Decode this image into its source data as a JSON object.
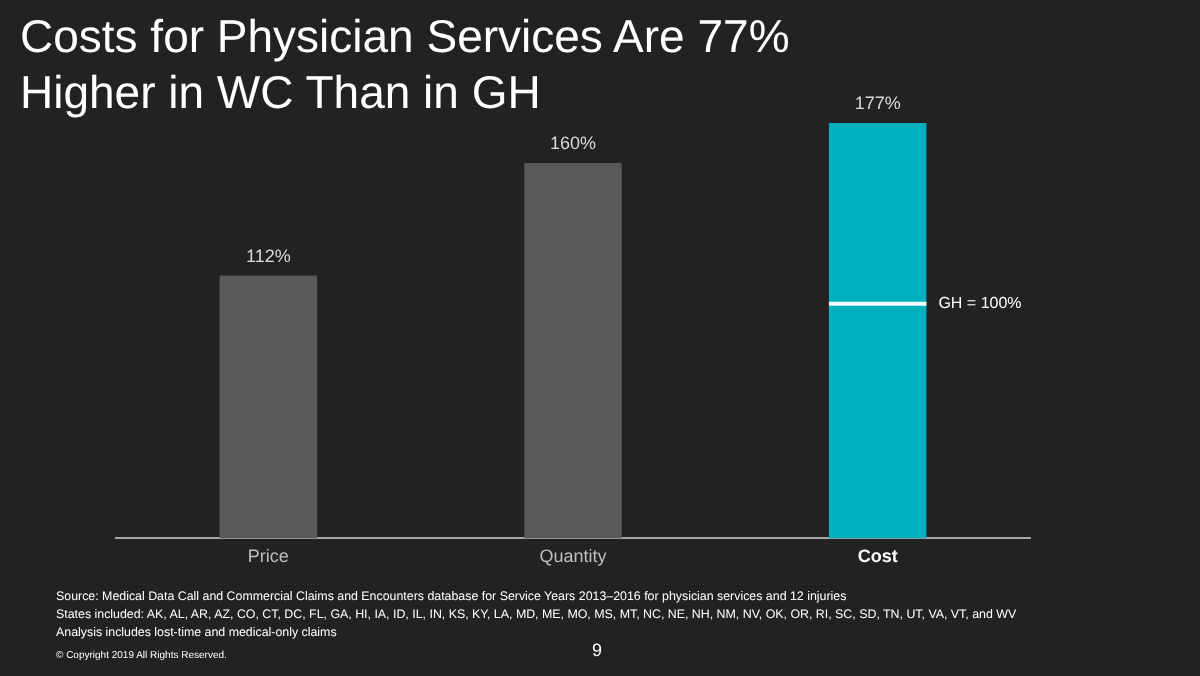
{
  "chart_data": {
    "type": "bar",
    "title": "Costs for Physician Services Are 77% Higher in WC Than in GH",
    "categories": [
      "Price",
      "Quantity",
      "Cost"
    ],
    "values": [
      112,
      160,
      177
    ],
    "colors": [
      "#595959",
      "#595959",
      "#00b0c0"
    ],
    "tick_labels": "x",
    "legend": false,
    "data_labels": true,
    "value_labels": [
      "112%",
      "160%",
      "177%"
    ],
    "ref_lines": [
      {
        "axis": "y",
        "value": 100,
        "label": "GH = 100%",
        "color": "#ffffff"
      }
    ],
    "annotations": [
      "Source:  Medical Data Call and Commercial Claims and Encounters database for Service Years 2013–2016 for physician services and 12 injuries",
      "States included: AK, AL, AR, AZ, CO, CT, DC, FL, GA, HI, IA, ID, IL, IN, KS, KY, LA, MD, ME, MO, MS, MT, NC, NE, NH, NM, NV, OK, OR, RI, SC, SD, TN, UT, VA, VT, and WV",
      "Analysis includes lost-time and medical-only claims",
      "© Copyright 2019 All Rights Reserved.",
      "9"
    ]
  }
}
